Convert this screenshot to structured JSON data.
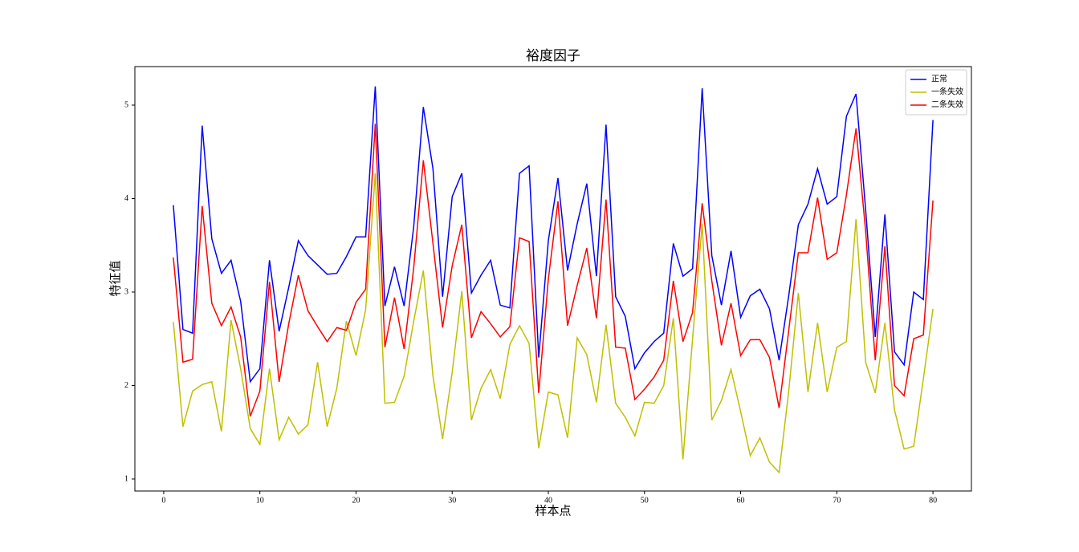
{
  "chart_data": {
    "type": "line",
    "title": "裕度因子",
    "xlabel": "样本点",
    "ylabel": "特征值",
    "x": [
      1,
      2,
      3,
      4,
      5,
      6,
      7,
      8,
      9,
      10,
      11,
      12,
      13,
      14,
      15,
      16,
      17,
      18,
      19,
      20,
      21,
      22,
      23,
      24,
      25,
      26,
      27,
      28,
      29,
      30,
      31,
      32,
      33,
      34,
      35,
      36,
      37,
      38,
      39,
      40,
      41,
      42,
      43,
      44,
      45,
      46,
      47,
      48,
      49,
      50,
      51,
      52,
      53,
      54,
      55,
      56,
      57,
      58,
      59,
      60,
      61,
      62,
      63,
      64,
      65,
      66,
      67,
      68,
      69,
      70,
      71,
      72,
      73,
      74,
      75,
      76,
      77,
      78,
      79,
      80
    ],
    "series": [
      {
        "name": "正常",
        "color": "#0000ff",
        "values": [
          3.93,
          2.6,
          2.56,
          4.78,
          3.57,
          3.2,
          3.34,
          2.9,
          2.04,
          2.18,
          3.34,
          2.58,
          3.05,
          3.55,
          3.39,
          3.29,
          3.19,
          3.2,
          3.38,
          3.59,
          3.59,
          5.2,
          2.85,
          3.27,
          2.85,
          3.7,
          4.98,
          4.32,
          2.95,
          4.02,
          4.27,
          2.99,
          3.18,
          3.34,
          2.86,
          2.83,
          4.27,
          4.35,
          2.3,
          3.55,
          4.22,
          3.23,
          3.73,
          4.16,
          3.17,
          4.79,
          2.95,
          2.74,
          2.18,
          2.35,
          2.47,
          2.56,
          3.52,
          3.17,
          3.25,
          5.18,
          3.39,
          2.86,
          3.44,
          2.73,
          2.96,
          3.03,
          2.82,
          2.27,
          2.96,
          3.72,
          3.94,
          4.32,
          3.94,
          4.02,
          4.88,
          5.12,
          3.88,
          2.52,
          3.83,
          2.36,
          2.22,
          3.0,
          2.92,
          4.84
        ]
      },
      {
        "name": "一条失效",
        "color": "#bfbf00",
        "values": [
          2.68,
          1.56,
          1.94,
          2.01,
          2.04,
          1.51,
          2.7,
          2.18,
          1.54,
          1.37,
          2.18,
          1.42,
          1.66,
          1.48,
          1.58,
          2.25,
          1.56,
          1.97,
          2.69,
          2.32,
          2.81,
          4.27,
          1.81,
          1.82,
          2.1,
          2.69,
          3.23,
          2.1,
          1.43,
          2.14,
          3.01,
          1.63,
          1.97,
          2.17,
          1.86,
          2.44,
          2.64,
          2.45,
          1.33,
          1.93,
          1.9,
          1.44,
          2.51,
          2.33,
          1.82,
          2.65,
          1.81,
          1.66,
          1.46,
          1.82,
          1.81,
          2.0,
          2.72,
          1.21,
          2.5,
          3.73,
          1.63,
          1.84,
          2.17,
          1.72,
          1.25,
          1.44,
          1.18,
          1.07,
          1.94,
          2.99,
          1.93,
          2.67,
          1.93,
          2.41,
          2.47,
          3.78,
          2.25,
          1.92,
          2.67,
          1.74,
          1.32,
          1.35,
          2.07,
          2.82
        ]
      },
      {
        "name": "二条失效",
        "color": "#ff0000",
        "values": [
          3.37,
          2.25,
          2.28,
          3.92,
          2.88,
          2.64,
          2.84,
          2.52,
          1.67,
          1.94,
          3.11,
          2.04,
          2.66,
          3.18,
          2.8,
          2.63,
          2.47,
          2.62,
          2.59,
          2.89,
          3.03,
          4.8,
          2.41,
          2.94,
          2.39,
          3.26,
          4.41,
          3.52,
          2.62,
          3.28,
          3.72,
          2.51,
          2.79,
          2.66,
          2.52,
          2.63,
          3.58,
          3.54,
          1.92,
          3.14,
          3.97,
          2.64,
          3.07,
          3.47,
          2.72,
          3.99,
          2.41,
          2.4,
          1.85,
          1.96,
          2.09,
          2.27,
          3.12,
          2.47,
          2.78,
          3.95,
          3.12,
          2.43,
          2.88,
          2.32,
          2.49,
          2.49,
          2.3,
          1.76,
          2.59,
          3.42,
          3.42,
          4.01,
          3.35,
          3.42,
          4.04,
          4.75,
          3.65,
          2.27,
          3.49,
          2.0,
          1.89,
          2.5,
          2.54,
          3.98
        ]
      }
    ],
    "xlim": [
      -3.0,
      84.0
    ],
    "ylim": [
      0.871,
      5.412
    ],
    "xticks": [
      0,
      10,
      20,
      30,
      40,
      50,
      60,
      70,
      80
    ],
    "yticks": [
      1,
      2,
      3,
      4,
      5
    ],
    "legend": "upper right"
  }
}
